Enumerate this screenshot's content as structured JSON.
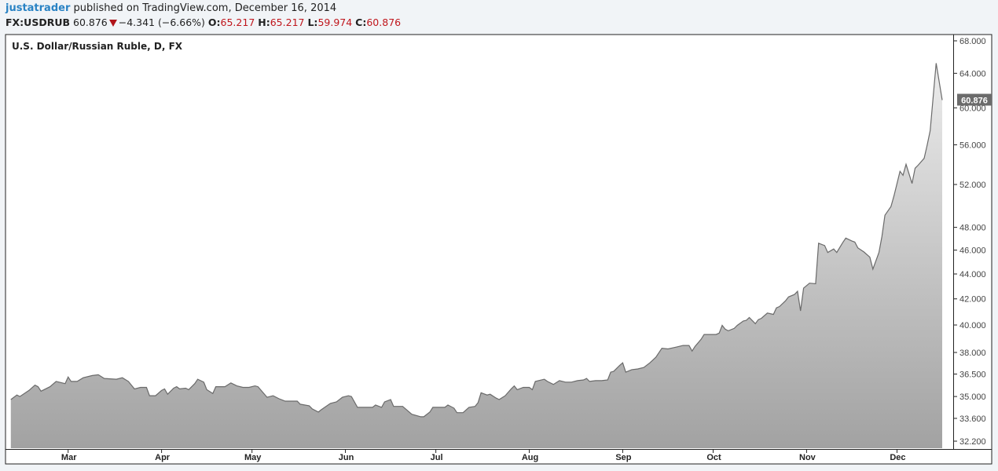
{
  "header": {
    "author": "justatrader",
    "published": "published on TradingView.com, December 16, 2014",
    "symbol": "FX:USDRUB",
    "last": "60.876",
    "change": "−4.341 (−6.66%)",
    "direction_icon": "down-triangle-icon",
    "ohlc": [
      {
        "label": "O:",
        "value": "65.217"
      },
      {
        "label": "H:",
        "value": "65.217"
      },
      {
        "label": "L:",
        "value": "59.974"
      },
      {
        "label": "C:",
        "value": "60.876"
      }
    ]
  },
  "colors": {
    "line": "#6a6a6a",
    "fill_top": "#ececec",
    "fill_bottom": "#a2a2a2",
    "accent_down": "#c0161c",
    "author": "#2a83c4",
    "price_label_bg": "#6b6b6b"
  },
  "chart_data": {
    "type": "area",
    "title": "U.S. Dollar/Russian Ruble, D, FX",
    "y_scale": "log",
    "ylim": [
      32.0,
      69.0
    ],
    "xlim": [
      "2014-02-09",
      "2014-12-16"
    ],
    "grid": false,
    "y_ticks": [
      "68.000",
      "64.000",
      "60.000",
      "56.000",
      "52.000",
      "48.000",
      "46.000",
      "44.000",
      "42.000",
      "40.000",
      "38.000",
      "36.500",
      "35.000",
      "33.600",
      "32.200"
    ],
    "x_ticks": [
      {
        "label": "Mar",
        "date": "2014-03-01"
      },
      {
        "label": "Apr",
        "date": "2014-04-01"
      },
      {
        "label": "May",
        "date": "2014-05-01"
      },
      {
        "label": "Jun",
        "date": "2014-06-01"
      },
      {
        "label": "Jul",
        "date": "2014-07-01"
      },
      {
        "label": "Aug",
        "date": "2014-08-01"
      },
      {
        "label": "Sep",
        "date": "2014-09-01"
      },
      {
        "label": "Oct",
        "date": "2014-10-01"
      },
      {
        "label": "Nov",
        "date": "2014-11-01"
      },
      {
        "label": "Dec",
        "date": "2014-12-01"
      }
    ],
    "last_price_label": "60.876",
    "points": [
      [
        "2014-02-10",
        34.8
      ],
      [
        "2014-02-12",
        35.1
      ],
      [
        "2014-02-13",
        35.0
      ],
      [
        "2014-02-16",
        35.4
      ],
      [
        "2014-02-18",
        35.75
      ],
      [
        "2014-02-19",
        35.65
      ],
      [
        "2014-02-20",
        35.35
      ],
      [
        "2014-02-23",
        35.65
      ],
      [
        "2014-02-25",
        36.0
      ],
      [
        "2014-02-28",
        35.85
      ],
      [
        "2014-03-01",
        36.3
      ],
      [
        "2014-03-02",
        36.0
      ],
      [
        "2014-03-04",
        36.0
      ],
      [
        "2014-03-06",
        36.25
      ],
      [
        "2014-03-09",
        36.4
      ],
      [
        "2014-03-11",
        36.45
      ],
      [
        "2014-03-13",
        36.2
      ],
      [
        "2014-03-17",
        36.15
      ],
      [
        "2014-03-19",
        36.25
      ],
      [
        "2014-03-21",
        36.0
      ],
      [
        "2014-03-23",
        35.5
      ],
      [
        "2014-03-25",
        35.6
      ],
      [
        "2014-03-27",
        35.6
      ],
      [
        "2014-03-28",
        35.05
      ],
      [
        "2014-03-30",
        35.05
      ],
      [
        "2014-04-01",
        35.4
      ],
      [
        "2014-04-02",
        35.5
      ],
      [
        "2014-04-03",
        35.15
      ],
      [
        "2014-04-05",
        35.55
      ],
      [
        "2014-04-06",
        35.65
      ],
      [
        "2014-04-07",
        35.5
      ],
      [
        "2014-04-09",
        35.55
      ],
      [
        "2014-04-10",
        35.45
      ],
      [
        "2014-04-12",
        35.85
      ],
      [
        "2014-04-13",
        36.15
      ],
      [
        "2014-04-15",
        35.95
      ],
      [
        "2014-04-16",
        35.45
      ],
      [
        "2014-04-18",
        35.2
      ],
      [
        "2014-04-19",
        35.65
      ],
      [
        "2014-04-22",
        35.65
      ],
      [
        "2014-04-24",
        35.9
      ],
      [
        "2014-04-26",
        35.7
      ],
      [
        "2014-04-28",
        35.6
      ],
      [
        "2014-04-30",
        35.6
      ],
      [
        "2014-05-02",
        35.7
      ],
      [
        "2014-05-03",
        35.65
      ],
      [
        "2014-05-06",
        34.95
      ],
      [
        "2014-05-08",
        35.05
      ],
      [
        "2014-05-10",
        34.85
      ],
      [
        "2014-05-12",
        34.7
      ],
      [
        "2014-05-16",
        34.7
      ],
      [
        "2014-05-17",
        34.5
      ],
      [
        "2014-05-20",
        34.4
      ],
      [
        "2014-05-21",
        34.2
      ],
      [
        "2014-05-23",
        34.0
      ],
      [
        "2014-05-24",
        34.15
      ],
      [
        "2014-05-27",
        34.55
      ],
      [
        "2014-05-29",
        34.65
      ],
      [
        "2014-05-31",
        34.95
      ],
      [
        "2014-06-02",
        35.05
      ],
      [
        "2014-06-03",
        35.0
      ],
      [
        "2014-06-05",
        34.3
      ],
      [
        "2014-06-10",
        34.3
      ],
      [
        "2014-06-11",
        34.45
      ],
      [
        "2014-06-13",
        34.3
      ],
      [
        "2014-06-14",
        34.65
      ],
      [
        "2014-06-16",
        34.8
      ],
      [
        "2014-06-17",
        34.36
      ],
      [
        "2014-06-20",
        34.36
      ],
      [
        "2014-06-23",
        33.86
      ],
      [
        "2014-06-26",
        33.7
      ],
      [
        "2014-06-27",
        33.7
      ],
      [
        "2014-06-29",
        34.0
      ],
      [
        "2014-06-30",
        34.3
      ],
      [
        "2014-07-02",
        34.3
      ],
      [
        "2014-07-04",
        34.3
      ],
      [
        "2014-07-05",
        34.45
      ],
      [
        "2014-07-07",
        34.25
      ],
      [
        "2014-07-08",
        33.96
      ],
      [
        "2014-07-10",
        33.96
      ],
      [
        "2014-07-12",
        34.3
      ],
      [
        "2014-07-14",
        34.36
      ],
      [
        "2014-07-15",
        34.6
      ],
      [
        "2014-07-16",
        35.25
      ],
      [
        "2014-07-18",
        35.1
      ],
      [
        "2014-07-19",
        35.15
      ],
      [
        "2014-07-21",
        34.9
      ],
      [
        "2014-07-22",
        34.8
      ],
      [
        "2014-07-24",
        35.05
      ],
      [
        "2014-07-26",
        35.5
      ],
      [
        "2014-07-27",
        35.7
      ],
      [
        "2014-07-28",
        35.45
      ],
      [
        "2014-07-30",
        35.6
      ],
      [
        "2014-08-01",
        35.6
      ],
      [
        "2014-08-02",
        35.45
      ],
      [
        "2014-08-03",
        36.0
      ],
      [
        "2014-08-06",
        36.15
      ],
      [
        "2014-08-07",
        36.0
      ],
      [
        "2014-08-09",
        35.8
      ],
      [
        "2014-08-11",
        36.05
      ],
      [
        "2014-08-13",
        35.95
      ],
      [
        "2014-08-15",
        35.95
      ],
      [
        "2014-08-17",
        36.05
      ],
      [
        "2014-08-19",
        36.1
      ],
      [
        "2014-08-20",
        36.2
      ],
      [
        "2014-08-21",
        36.0
      ],
      [
        "2014-08-23",
        36.05
      ],
      [
        "2014-08-25",
        36.05
      ],
      [
        "2014-08-27",
        36.1
      ],
      [
        "2014-08-28",
        36.63
      ],
      [
        "2014-08-29",
        36.68
      ],
      [
        "2014-08-31",
        37.1
      ],
      [
        "2014-09-01",
        37.27
      ],
      [
        "2014-09-02",
        36.63
      ],
      [
        "2014-09-04",
        36.8
      ],
      [
        "2014-09-06",
        36.85
      ],
      [
        "2014-09-08",
        36.95
      ],
      [
        "2014-09-10",
        37.27
      ],
      [
        "2014-09-12",
        37.66
      ],
      [
        "2014-09-14",
        38.3
      ],
      [
        "2014-09-16",
        38.25
      ],
      [
        "2014-09-18",
        38.35
      ],
      [
        "2014-09-19",
        38.4
      ],
      [
        "2014-09-21",
        38.5
      ],
      [
        "2014-09-23",
        38.5
      ],
      [
        "2014-09-24",
        38.1
      ],
      [
        "2014-09-25",
        38.44
      ],
      [
        "2014-09-27",
        38.95
      ],
      [
        "2014-09-28",
        39.3
      ],
      [
        "2014-10-02",
        39.3
      ],
      [
        "2014-10-03",
        39.4
      ],
      [
        "2014-10-04",
        39.97
      ],
      [
        "2014-10-05",
        39.69
      ],
      [
        "2014-10-06",
        39.57
      ],
      [
        "2014-10-08",
        39.75
      ],
      [
        "2014-10-09",
        39.97
      ],
      [
        "2014-10-11",
        40.3
      ],
      [
        "2014-10-12",
        40.35
      ],
      [
        "2014-10-13",
        40.56
      ],
      [
        "2014-10-15",
        40.1
      ],
      [
        "2014-10-16",
        40.4
      ],
      [
        "2014-10-17",
        40.5
      ],
      [
        "2014-10-19",
        40.9
      ],
      [
        "2014-10-21",
        40.8
      ],
      [
        "2014-10-22",
        41.3
      ],
      [
        "2014-10-23",
        41.4
      ],
      [
        "2014-10-25",
        41.85
      ],
      [
        "2014-10-26",
        42.15
      ],
      [
        "2014-10-28",
        42.35
      ],
      [
        "2014-10-29",
        42.6
      ],
      [
        "2014-10-30",
        41.07
      ],
      [
        "2014-10-31",
        42.85
      ],
      [
        "2014-11-02",
        43.25
      ],
      [
        "2014-11-04",
        43.2
      ],
      [
        "2014-11-05",
        46.6
      ],
      [
        "2014-11-07",
        46.4
      ],
      [
        "2014-11-08",
        45.8
      ],
      [
        "2014-11-10",
        46.1
      ],
      [
        "2014-11-11",
        45.8
      ],
      [
        "2014-11-13",
        46.65
      ],
      [
        "2014-11-14",
        47.05
      ],
      [
        "2014-11-16",
        46.8
      ],
      [
        "2014-11-17",
        46.7
      ],
      [
        "2014-11-18",
        46.2
      ],
      [
        "2014-11-20",
        45.85
      ],
      [
        "2014-11-22",
        45.4
      ],
      [
        "2014-11-23",
        44.4
      ],
      [
        "2014-11-25",
        45.8
      ],
      [
        "2014-11-26",
        47.2
      ],
      [
        "2014-11-27",
        49.1
      ],
      [
        "2014-11-29",
        49.9
      ],
      [
        "2014-11-30",
        50.9
      ],
      [
        "2014-12-02",
        53.3
      ],
      [
        "2014-12-03",
        52.9
      ],
      [
        "2014-12-04",
        54.0
      ],
      [
        "2014-12-06",
        52.1
      ],
      [
        "2014-12-07",
        53.6
      ],
      [
        "2014-12-08",
        53.9
      ],
      [
        "2014-12-10",
        54.6
      ],
      [
        "2014-12-11",
        55.95
      ],
      [
        "2014-12-12",
        57.5
      ],
      [
        "2014-12-14",
        65.22
      ],
      [
        "2014-12-16",
        60.876
      ]
    ]
  }
}
